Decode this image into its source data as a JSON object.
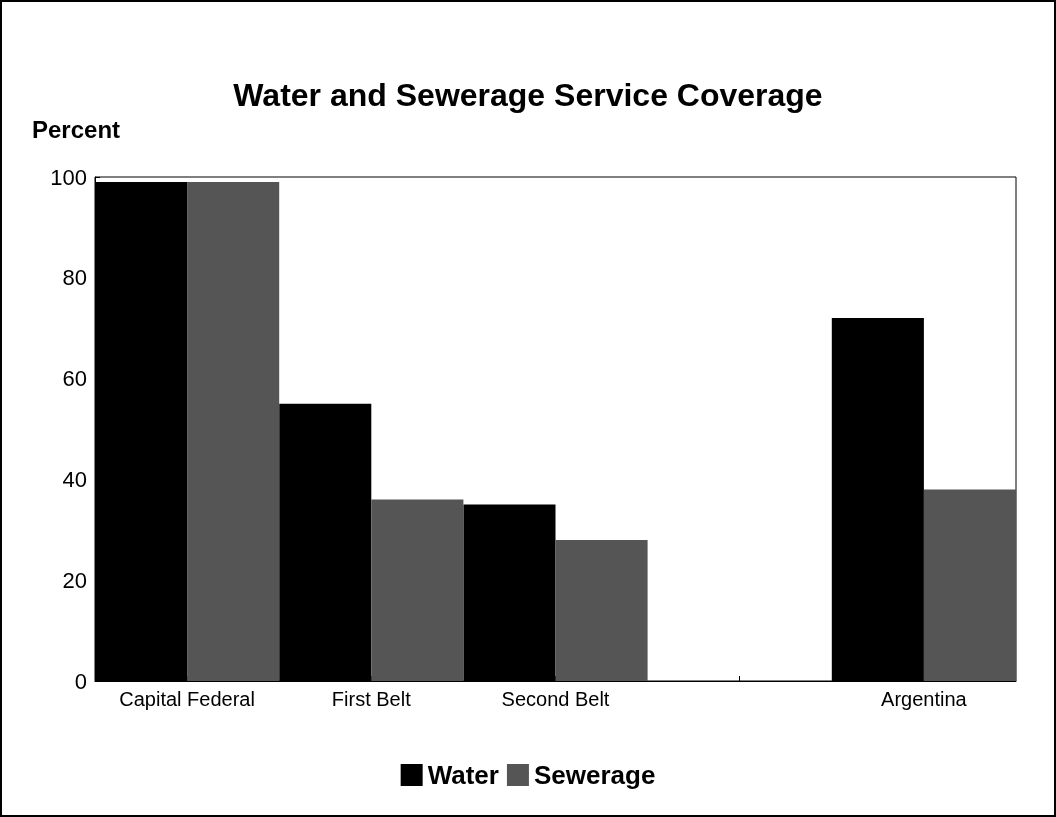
{
  "chart_data": {
    "type": "bar",
    "title": "Water and Sewerage Service Coverage",
    "ylabel": "Percent",
    "categories": [
      "Capital Federal",
      "First Belt",
      "Second Belt",
      null,
      "Argentina"
    ],
    "series": [
      {
        "name": "Water",
        "color": "#000000",
        "values": [
          99,
          55,
          35,
          null,
          72
        ]
      },
      {
        "name": "Sewerage",
        "color": "#555555",
        "values": [
          99,
          36,
          28,
          null,
          38
        ]
      }
    ],
    "ylim": [
      0,
      100
    ],
    "yticks": [
      0,
      20,
      40,
      60,
      80,
      100
    ],
    "grid": false,
    "legend": "bottom"
  }
}
